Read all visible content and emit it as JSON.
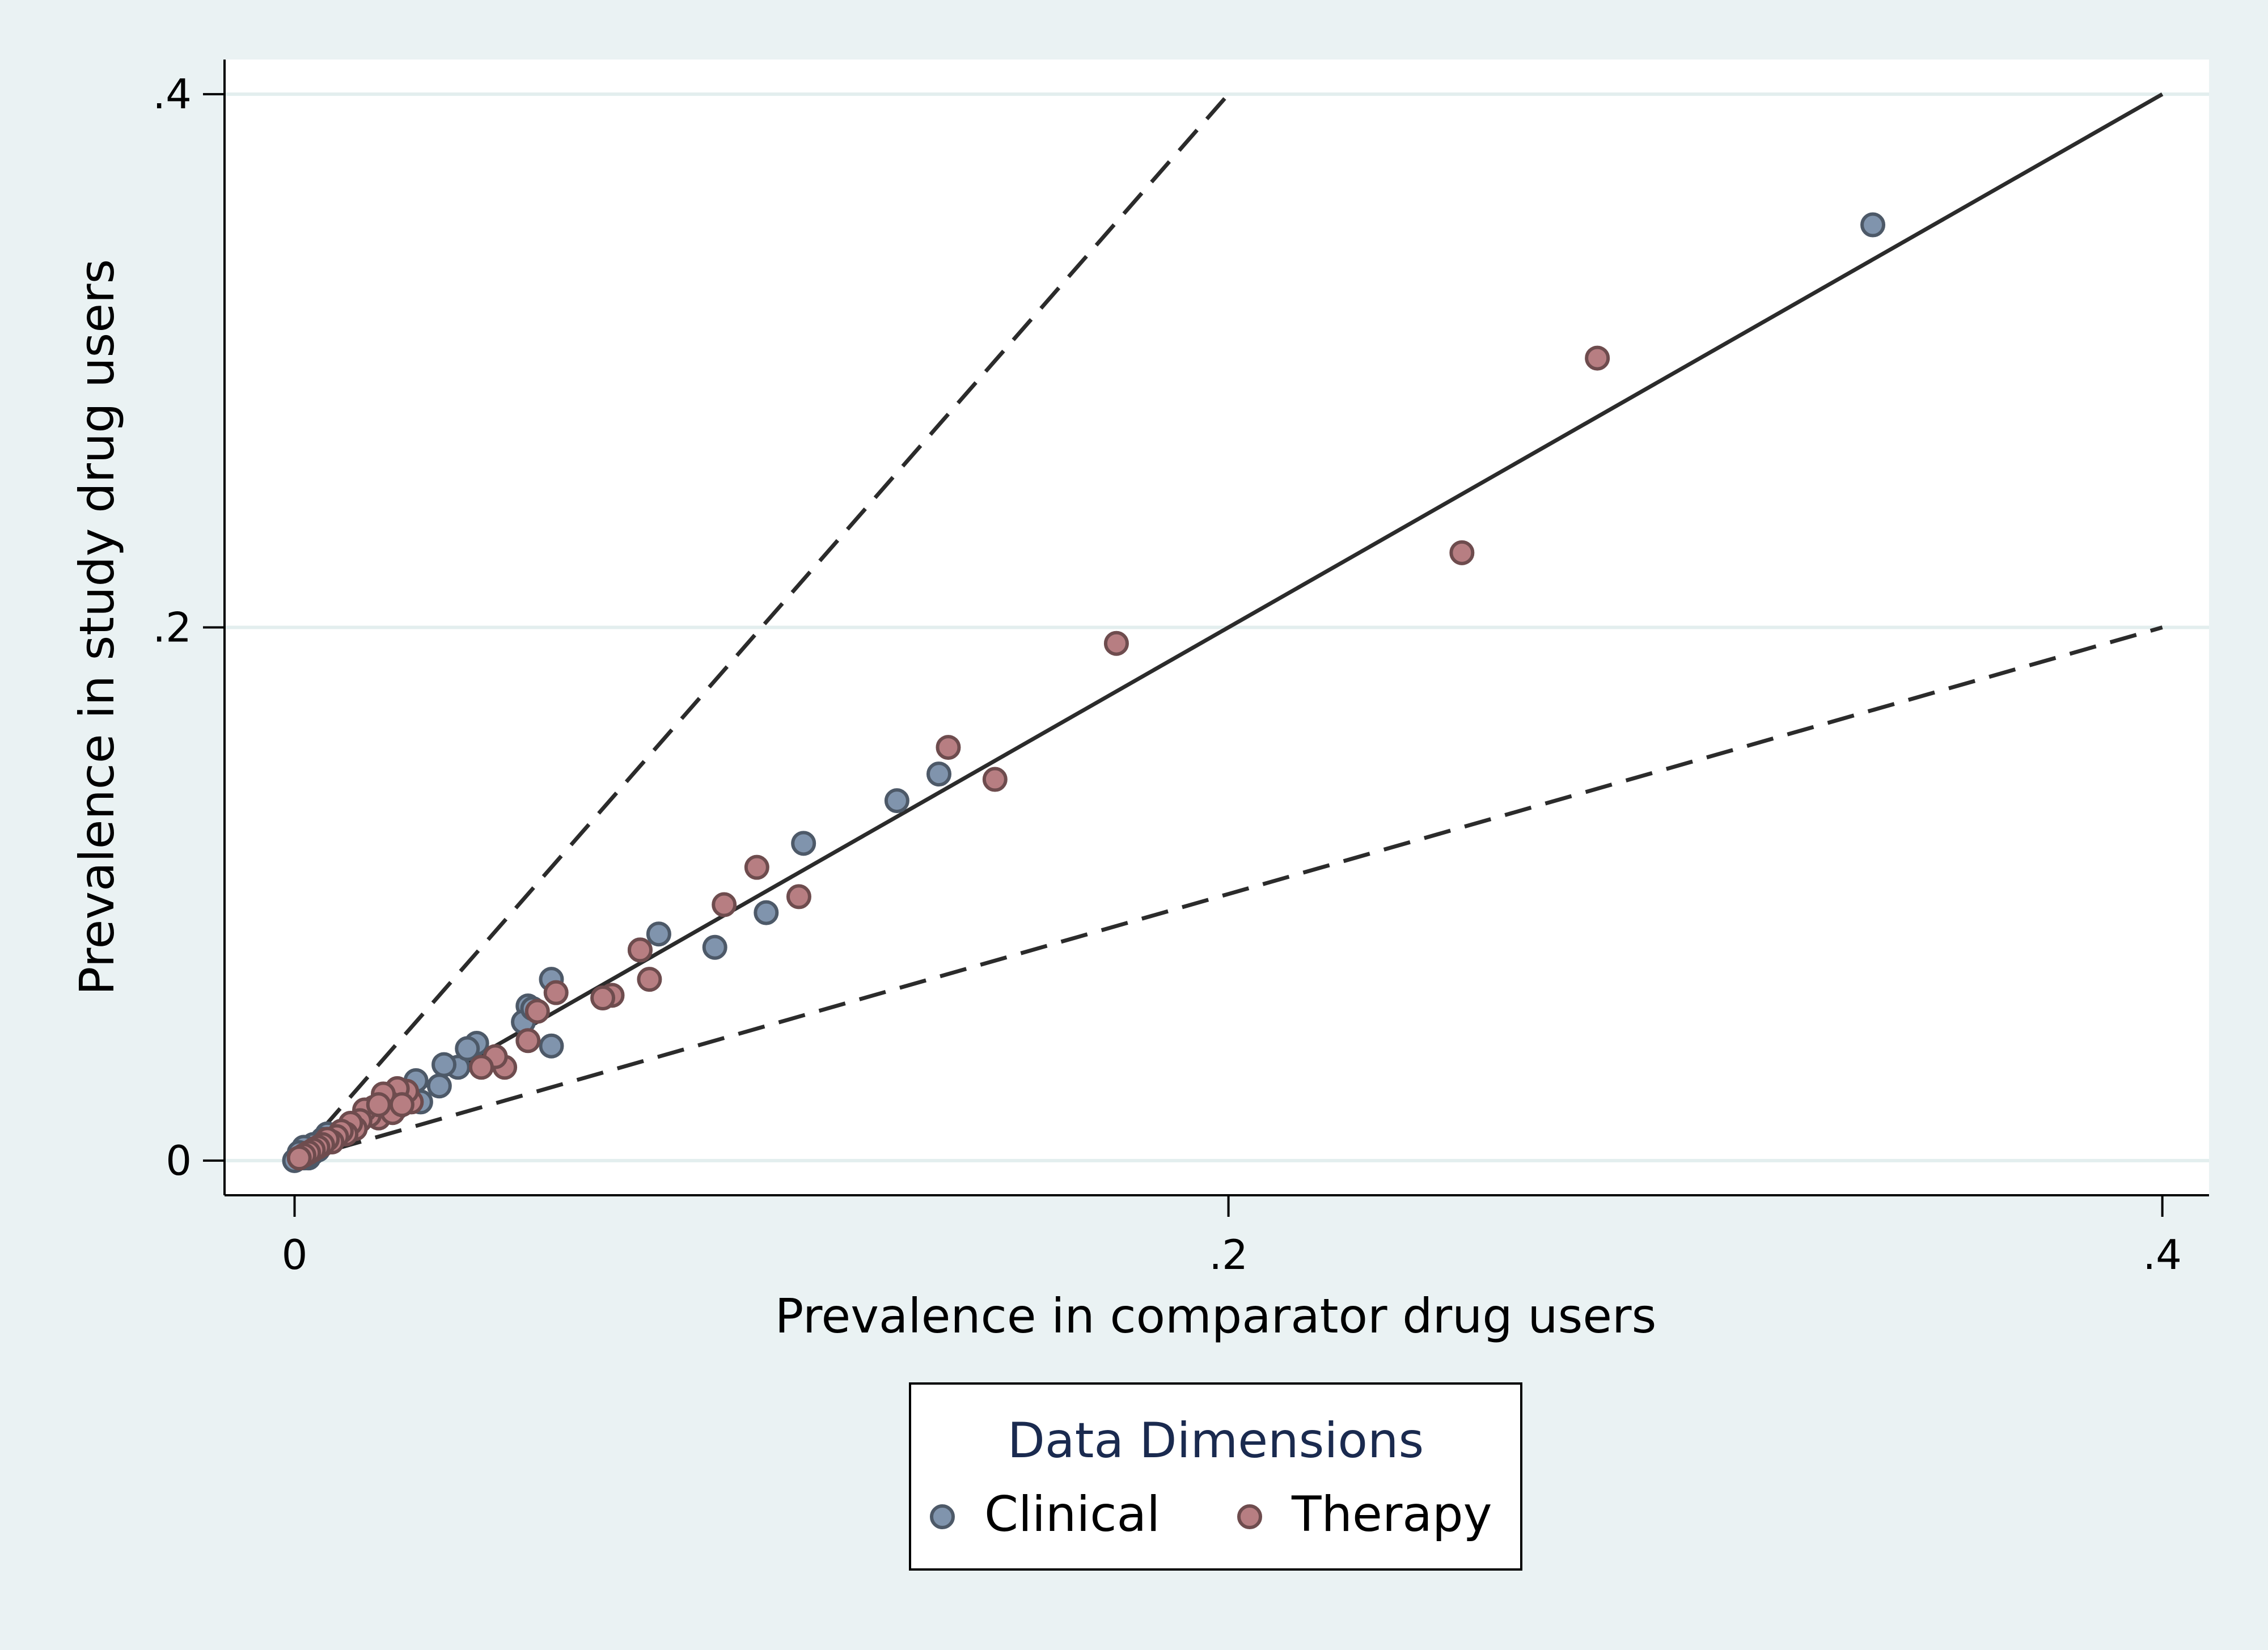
{
  "chart_data": {
    "type": "scatter",
    "title": "",
    "xlabel": "Prevalence in comparator drug users",
    "ylabel": "Prevalence in study drug users",
    "xlim": [
      -0.015,
      0.41
    ],
    "ylim": [
      -0.013,
      0.413
    ],
    "xticks": [
      0,
      0.2,
      0.4
    ],
    "xtick_labels": [
      "0",
      ".2",
      ".4"
    ],
    "yticks": [
      0,
      0.2,
      0.4
    ],
    "ytick_labels": [
      "0",
      ".2",
      ".4"
    ],
    "grid": true,
    "legend": {
      "title": "Data Dimensions",
      "placement": "bottom-center"
    },
    "reference_lines": [
      {
        "style": "solid",
        "x": [
          0,
          0.4
        ],
        "y": [
          0,
          0.4
        ]
      },
      {
        "style": "dashed",
        "x": [
          0,
          0.2
        ],
        "y": [
          0,
          0.4
        ]
      },
      {
        "style": "dashed",
        "x": [
          0,
          0.4
        ],
        "y": [
          0,
          0.2
        ]
      }
    ],
    "series": [
      {
        "name": "Clinical",
        "color": "#8094ad",
        "x": [
          0.338,
          0.138,
          0.129,
          0.109,
          0.101,
          0.09,
          0.078,
          0.074,
          0.055,
          0.055,
          0.05,
          0.049,
          0.051,
          0.039,
          0.035,
          0.037,
          0.032,
          0.031,
          0.026,
          0.027,
          0.024,
          0.022,
          0.02,
          0.018,
          0.016,
          0.014,
          0.012,
          0.01,
          0.008,
          0.007,
          0.006,
          0.005,
          0.004,
          0.003,
          0.002,
          0.001,
          0.003,
          0.004,
          0.006,
          0.002,
          0.0,
          0.001
        ],
        "y": [
          0.351,
          0.145,
          0.135,
          0.119,
          0.093,
          0.08,
          0.085,
          0.079,
          0.068,
          0.043,
          0.058,
          0.052,
          0.057,
          0.044,
          0.035,
          0.042,
          0.036,
          0.028,
          0.03,
          0.022,
          0.025,
          0.02,
          0.022,
          0.017,
          0.018,
          0.015,
          0.013,
          0.011,
          0.009,
          0.01,
          0.008,
          0.004,
          0.006,
          0.003,
          0.005,
          0.002,
          0.001,
          0.003,
          0.006,
          0.001,
          0.0,
          0.003
        ]
      },
      {
        "name": "Therapy",
        "color": "#b77e82",
        "x": [
          0.279,
          0.25,
          0.176,
          0.15,
          0.14,
          0.108,
          0.099,
          0.092,
          0.076,
          0.074,
          0.068,
          0.066,
          0.056,
          0.052,
          0.05,
          0.045,
          0.043,
          0.04,
          0.025,
          0.024,
          0.022,
          0.021,
          0.02,
          0.019,
          0.018,
          0.017,
          0.016,
          0.015,
          0.014,
          0.013,
          0.012,
          0.011,
          0.01,
          0.009,
          0.008,
          0.007,
          0.006,
          0.005,
          0.004,
          0.003,
          0.002,
          0.001,
          0.021,
          0.023,
          0.018
        ],
        "y": [
          0.301,
          0.228,
          0.194,
          0.143,
          0.155,
          0.099,
          0.11,
          0.096,
          0.068,
          0.079,
          0.062,
          0.061,
          0.063,
          0.056,
          0.045,
          0.035,
          0.039,
          0.035,
          0.022,
          0.026,
          0.027,
          0.019,
          0.022,
          0.025,
          0.016,
          0.02,
          0.017,
          0.019,
          0.015,
          0.012,
          0.014,
          0.01,
          0.011,
          0.009,
          0.007,
          0.008,
          0.006,
          0.005,
          0.004,
          0.003,
          0.002,
          0.001,
          0.018,
          0.021,
          0.021
        ]
      }
    ]
  }
}
